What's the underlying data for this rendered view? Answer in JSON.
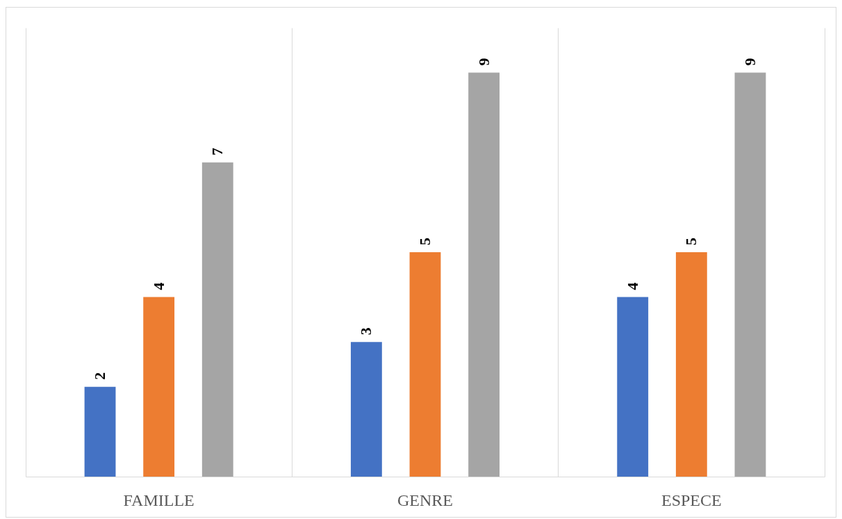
{
  "chart_data": {
    "type": "bar",
    "categories": [
      "FAMILLE",
      "GENRE",
      "ESPECE"
    ],
    "series": [
      {
        "color": "#4472c4",
        "values": [
          2,
          3,
          4
        ]
      },
      {
        "color": "#ed7d31",
        "values": [
          4,
          5,
          5
        ]
      },
      {
        "color": "#a5a5a5",
        "values": [
          7,
          9,
          9
        ]
      }
    ],
    "data_labels": true,
    "grid": "x",
    "tick_labels": "x"
  }
}
